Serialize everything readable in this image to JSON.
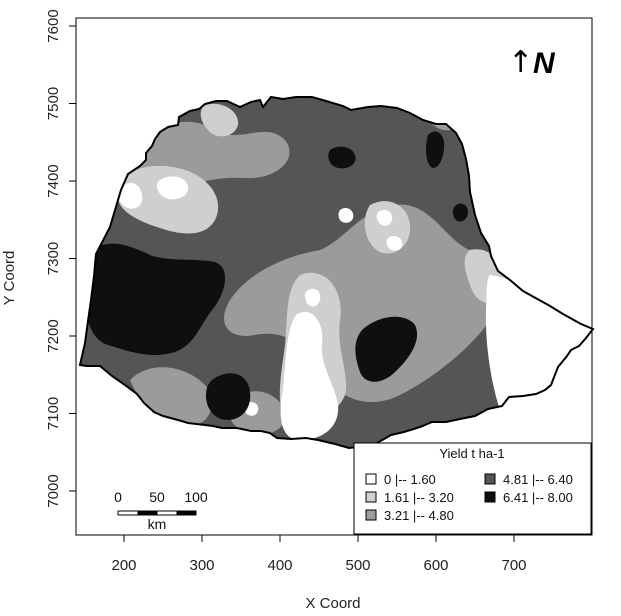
{
  "axes": {
    "x_label": "X Coord",
    "y_label": "Y Coord",
    "x_ticks": [
      "200",
      "300",
      "400",
      "500",
      "600",
      "700"
    ],
    "y_ticks": [
      "7000",
      "7100",
      "7200",
      "7300",
      "7400",
      "7500",
      "7600"
    ]
  },
  "north": {
    "arrow": "↑",
    "label": "N"
  },
  "scale_bar": {
    "labels": [
      "0",
      "50",
      "100"
    ],
    "unit": "km"
  },
  "legend": {
    "title": "Yield t ha-1",
    "items": [
      {
        "label": "0 |-- 1.60",
        "color": "#ffffff"
      },
      {
        "label": "1.61 |-- 3.20",
        "color": "#cfcfcf"
      },
      {
        "label": "3.21 |-- 4.80",
        "color": "#9b9b9b"
      },
      {
        "label": "4.81 |-- 6.40",
        "color": "#555555"
      },
      {
        "label": "6.41 |-- 8.00",
        "color": "#0f0f0f"
      }
    ]
  },
  "colors": {
    "class_0": "#ffffff",
    "class_1": "#cfcfcf",
    "class_2": "#9b9b9b",
    "class_3": "#555555",
    "class_4": "#0f0f0f",
    "outline": "#000000"
  }
}
